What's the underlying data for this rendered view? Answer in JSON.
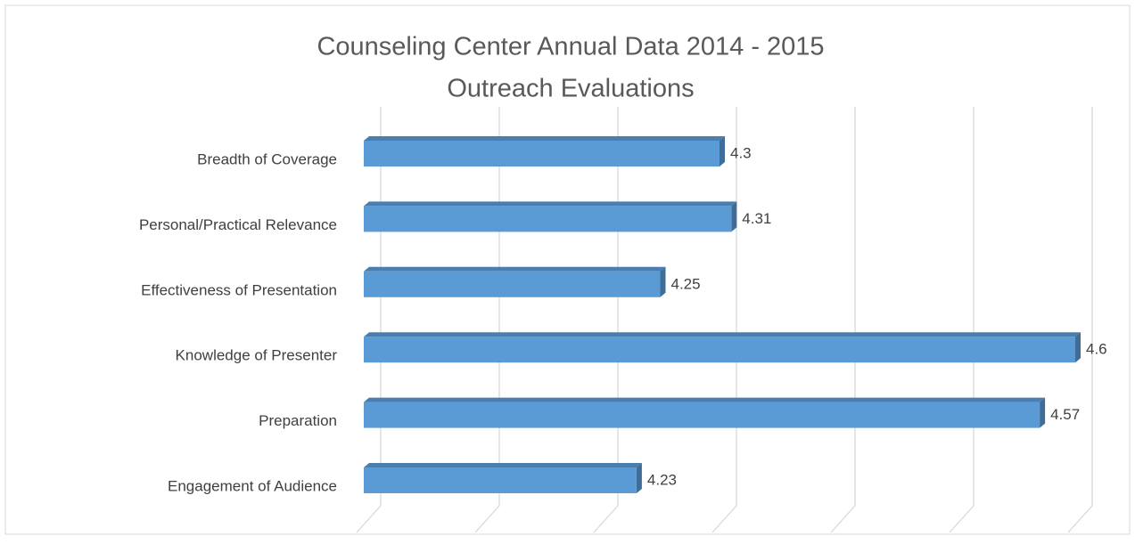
{
  "chart_data": {
    "type": "bar",
    "orientation": "horizontal",
    "three_d": true,
    "title": "Counseling Center Annual Data 2014 - 2015",
    "subtitle": "Outreach Evaluations",
    "categories": [
      "Breadth of Coverage",
      "Personal/Practical Relevance",
      "Effectiveness of Presentation",
      "Knowledge of Presenter",
      "Preparation",
      "Engagement of Audience"
    ],
    "values": [
      4.3,
      4.31,
      4.25,
      4.6,
      4.57,
      4.23
    ],
    "color": "#5b9bd5",
    "xlim": [
      4.0,
      4.6
    ],
    "xticks": [
      4.0,
      4.1,
      4.2,
      4.3,
      4.4,
      4.5,
      4.6
    ],
    "grid": true
  }
}
